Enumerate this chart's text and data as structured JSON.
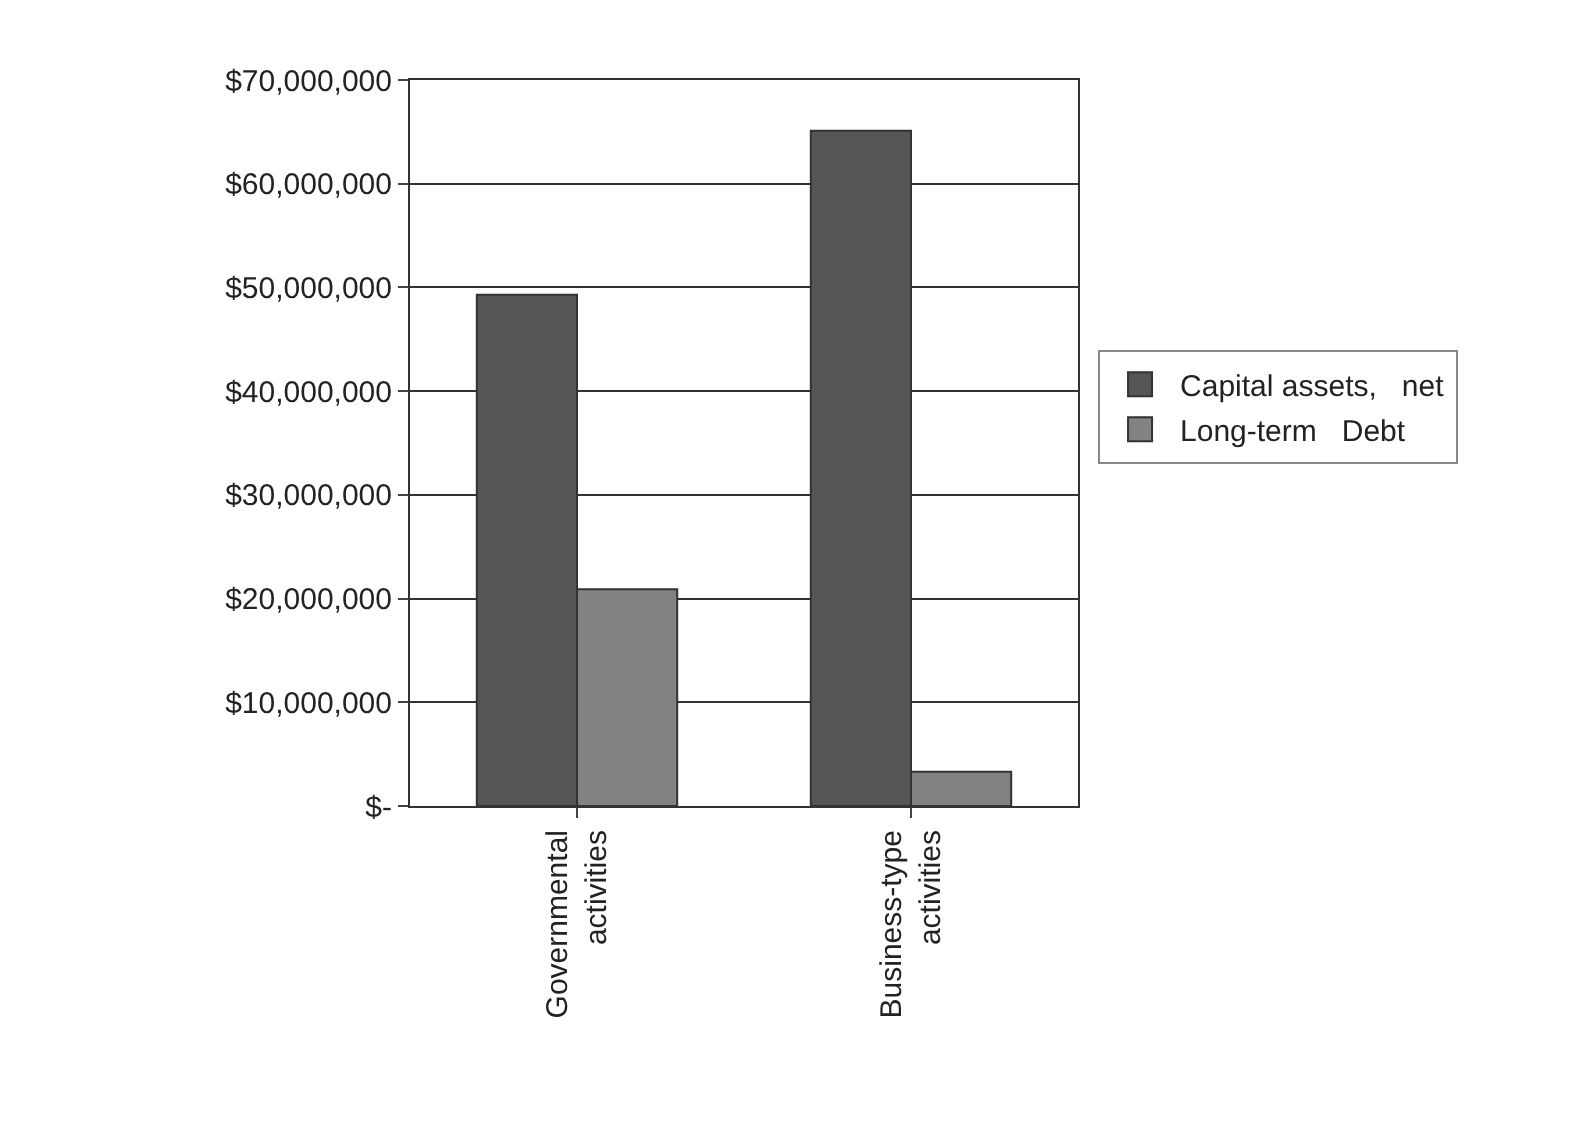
{
  "chart_data": {
    "type": "bar",
    "categories": [
      "Governmental\nactivities",
      "Business-type\nactivities"
    ],
    "series": [
      {
        "name": "Capital assets,   net",
        "color": "#555555",
        "values": [
          49300000,
          65100000
        ]
      },
      {
        "name": "Long-term   Debt",
        "color": "#828282",
        "values": [
          20900000,
          3300000
        ]
      }
    ],
    "ylim": [
      0,
      70000000
    ],
    "yticks": [
      {
        "value": 0,
        "label": "$-"
      },
      {
        "value": 10000000,
        "label": "$10,000,000"
      },
      {
        "value": 20000000,
        "label": "$20,000,000"
      },
      {
        "value": 30000000,
        "label": "$30,000,000"
      },
      {
        "value": 40000000,
        "label": "$40,000,000"
      },
      {
        "value": 50000000,
        "label": "$50,000,000"
      },
      {
        "value": 60000000,
        "label": "$60,000,000"
      },
      {
        "value": 70000000,
        "label": "$70,000,000"
      }
    ],
    "grid": "y",
    "legend": "right"
  }
}
